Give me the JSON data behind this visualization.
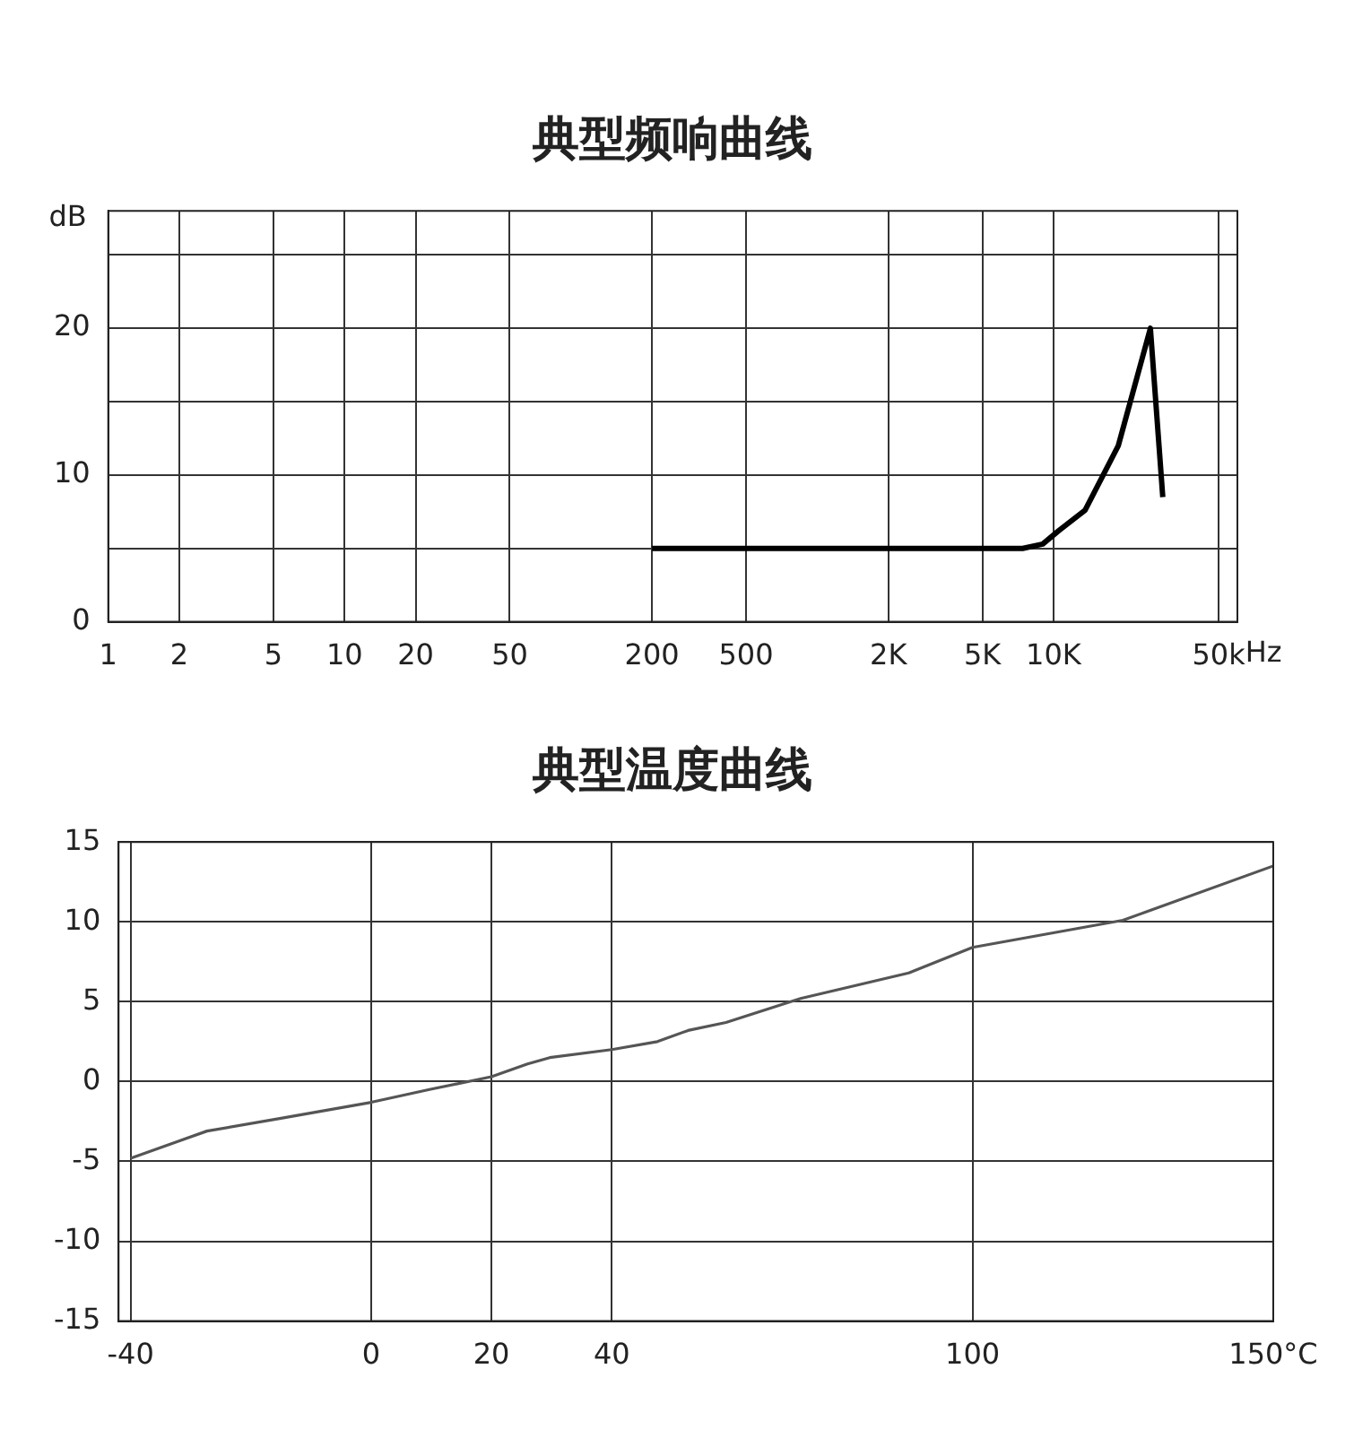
{
  "chart_data": [
    {
      "type": "line",
      "title": "典型频响曲线",
      "ylabel": "dB",
      "log": "x",
      "grid": true,
      "marker": "none",
      "line_style": "solid",
      "xlim": [
        1,
        60000
      ],
      "ylim": [
        0,
        28
      ],
      "xticks": [
        1,
        2,
        5,
        10,
        20,
        50,
        200,
        500,
        {
          "value": 2000,
          "label": "2K"
        },
        {
          "value": 5000,
          "label": "5K"
        },
        {
          "value": 10000,
          "label": "10K"
        },
        {
          "value": 50000,
          "label": "50k"
        }
      ],
      "xlabel": "Hz",
      "yticks": [
        0,
        {
          "value": 5,
          "label": null
        },
        10,
        {
          "value": 15,
          "label": null
        },
        20,
        {
          "value": 25,
          "label": null
        }
      ],
      "x": [
        200,
        500,
        2000,
        5000,
        7400,
        9000,
        10500,
        13600,
        18800,
        25700,
        29000
      ],
      "series": [
        {
          "color": "#000000",
          "values": [
            5,
            5,
            5,
            5,
            5,
            5.3,
            6.2,
            7.6,
            12,
            20,
            8.5
          ]
        }
      ]
    },
    {
      "type": "line",
      "title": "典型温度曲线",
      "grid": true,
      "marker": "none",
      "line_style": "solid",
      "xlim": [
        -42,
        150
      ],
      "ylim": [
        -15,
        15
      ],
      "xticks": [
        -40,
        0,
        20,
        40,
        100,
        {
          "value": 150,
          "label": "150°C"
        }
      ],
      "yticks": [
        -15,
        -10,
        -5,
        0,
        5,
        10,
        15
      ],
      "x": [
        -40,
        -27.3,
        -15,
        0,
        9.7,
        20,
        26,
        29.7,
        40,
        47.6,
        52.7,
        59,
        71.4,
        89.4,
        100,
        125,
        150
      ],
      "series": [
        {
          "color": "#555555",
          "values": [
            -4.8,
            -3.1,
            -2.3,
            -1.3,
            -0.5,
            0.3,
            1.1,
            1.5,
            2.0,
            2.5,
            3.2,
            3.7,
            5.2,
            6.8,
            8.4,
            10.1,
            13.5
          ]
        }
      ]
    }
  ]
}
